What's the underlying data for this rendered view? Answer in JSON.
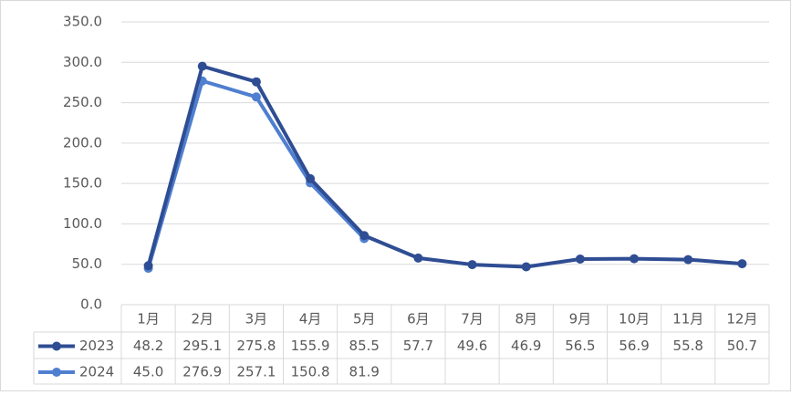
{
  "chart_data": {
    "type": "line",
    "categories": [
      "1月",
      "2月",
      "3月",
      "4月",
      "5月",
      "6月",
      "7月",
      "8月",
      "9月",
      "10月",
      "11月",
      "12月"
    ],
    "series": [
      {
        "name": "2023",
        "color": "#2f4d93",
        "values": [
          48.2,
          295.1,
          275.8,
          155.9,
          85.5,
          57.7,
          49.6,
          46.9,
          56.5,
          56.9,
          55.8,
          50.7
        ]
      },
      {
        "name": "2024",
        "color": "#4f7fd0",
        "values": [
          45.0,
          276.9,
          257.1,
          150.8,
          81.9,
          null,
          null,
          null,
          null,
          null,
          null,
          null
        ],
        "value_labels": [
          "45.0",
          "276.9",
          "257.1",
          "150.8",
          "81.9",
          null,
          null,
          null,
          null,
          null,
          null,
          null
        ]
      }
    ],
    "ylim": [
      0,
      350
    ],
    "yticks": [
      {
        "value": 0,
        "label": "0.0"
      },
      {
        "value": 50,
        "label": "50.0"
      },
      {
        "value": 100,
        "label": "100.0"
      },
      {
        "value": 150,
        "label": "150.0"
      },
      {
        "value": 200,
        "label": "200.0"
      },
      {
        "value": 250,
        "label": "250.0"
      },
      {
        "value": 300,
        "label": "300.0"
      },
      {
        "value": 350,
        "label": "350.0"
      }
    ],
    "grid": true
  }
}
